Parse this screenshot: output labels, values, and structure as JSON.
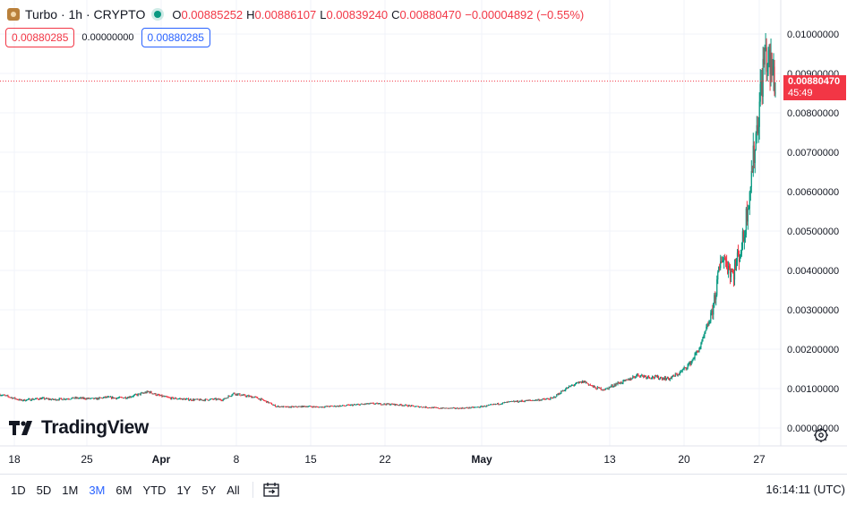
{
  "header": {
    "symbol_title": "Turbo · 1h · CRYPTO",
    "ohlc": [
      {
        "label": "O",
        "value": "0.00885252"
      },
      {
        "label": "H",
        "value": "0.00886107"
      },
      {
        "label": "L",
        "value": "0.00839240"
      },
      {
        "label": "C",
        "value": "0.00880470"
      }
    ],
    "change": "−0.00004892 (−0.55%)"
  },
  "quotes": {
    "bid": "0.00880285",
    "spread": "0.00000000",
    "ask": "0.00880285"
  },
  "last_price": {
    "value": "0.00880470",
    "countdown": "45:49"
  },
  "brand": "TradingView",
  "bottom_bar": {
    "ranges": [
      "1D",
      "5D",
      "1M",
      "3M",
      "6M",
      "YTD",
      "1Y",
      "5Y",
      "All"
    ],
    "active_range": "3M",
    "clock": "16:14:11 (UTC)"
  },
  "colors": {
    "up": "#089981",
    "down": "#f23645",
    "accent": "#2962ff",
    "grid": "#f0f3fa"
  },
  "chart_data": {
    "type": "candlestick",
    "interval": "1h",
    "y_ticks": [
      "0.01000000",
      "0.00900000",
      "0.00800000",
      "0.00700000",
      "0.00600000",
      "0.00500000",
      "0.00400000",
      "0.00300000",
      "0.00200000",
      "0.00100000",
      "0.00000000"
    ],
    "ylim": [
      0,
      0.01
    ],
    "x_ticks": [
      "18",
      "25",
      "Apr",
      "8",
      "15",
      "22",
      "May",
      "13",
      "20",
      "27"
    ],
    "last_close": 0.0088047,
    "close_path": [
      {
        "t": "18",
        "v": 0.00085
      },
      {
        "t": "19",
        "v": 0.00078
      },
      {
        "t": "20",
        "v": 0.0007
      },
      {
        "t": "21",
        "v": 0.00073
      },
      {
        "t": "22",
        "v": 0.00075
      },
      {
        "t": "23",
        "v": 0.00072
      },
      {
        "t": "24",
        "v": 0.00074
      },
      {
        "t": "25",
        "v": 0.00076
      },
      {
        "t": "26",
        "v": 0.00075
      },
      {
        "t": "27",
        "v": 0.00074
      },
      {
        "t": "28",
        "v": 0.00078
      },
      {
        "t": "29",
        "v": 0.00076
      },
      {
        "t": "30",
        "v": 0.00078
      },
      {
        "t": "31",
        "v": 0.00085
      },
      {
        "t": "Apr",
        "v": 0.00092
      },
      {
        "t": "2",
        "v": 0.00082
      },
      {
        "t": "3",
        "v": 0.00076
      },
      {
        "t": "4",
        "v": 0.00074
      },
      {
        "t": "5",
        "v": 0.00072
      },
      {
        "t": "6",
        "v": 0.00071
      },
      {
        "t": "7",
        "v": 0.00073
      },
      {
        "t": "8",
        "v": 0.00072
      },
      {
        "t": "9",
        "v": 0.00088
      },
      {
        "t": "10",
        "v": 0.00082
      },
      {
        "t": "11",
        "v": 0.00078
      },
      {
        "t": "12",
        "v": 0.00068
      },
      {
        "t": "13",
        "v": 0.00055
      },
      {
        "t": "14",
        "v": 0.00053
      },
      {
        "t": "15",
        "v": 0.00054
      },
      {
        "t": "16",
        "v": 0.00055
      },
      {
        "t": "17",
        "v": 0.00053
      },
      {
        "t": "18",
        "v": 0.00055
      },
      {
        "t": "19",
        "v": 0.00056
      },
      {
        "t": "20",
        "v": 0.00058
      },
      {
        "t": "21",
        "v": 0.0006
      },
      {
        "t": "22",
        "v": 0.00062
      },
      {
        "t": "23",
        "v": 0.00061
      },
      {
        "t": "24",
        "v": 0.0006
      },
      {
        "t": "25",
        "v": 0.00058
      },
      {
        "t": "26",
        "v": 0.00055
      },
      {
        "t": "27",
        "v": 0.00053
      },
      {
        "t": "28",
        "v": 0.00051
      },
      {
        "t": "29",
        "v": 0.0005
      },
      {
        "t": "30",
        "v": 0.0005
      },
      {
        "t": "May",
        "v": 0.00051
      },
      {
        "t": "2",
        "v": 0.00053
      },
      {
        "t": "3",
        "v": 0.00057
      },
      {
        "t": "4",
        "v": 0.00062
      },
      {
        "t": "5",
        "v": 0.00066
      },
      {
        "t": "6",
        "v": 0.00068
      },
      {
        "t": "7",
        "v": 0.0007
      },
      {
        "t": "8",
        "v": 0.00072
      },
      {
        "t": "9",
        "v": 0.00075
      },
      {
        "t": "10",
        "v": 0.00095
      },
      {
        "t": "11",
        "v": 0.0011
      },
      {
        "t": "12",
        "v": 0.00118
      },
      {
        "t": "13",
        "v": 0.00102
      },
      {
        "t": "14",
        "v": 0.00098
      },
      {
        "t": "15",
        "v": 0.00112
      },
      {
        "t": "16",
        "v": 0.0012
      },
      {
        "t": "17",
        "v": 0.00135
      },
      {
        "t": "18",
        "v": 0.0013
      },
      {
        "t": "19",
        "v": 0.00128
      },
      {
        "t": "20",
        "v": 0.00125
      },
      {
        "t": "21",
        "v": 0.0014
      },
      {
        "t": "22",
        "v": 0.00165
      },
      {
        "t": "23",
        "v": 0.0021
      },
      {
        "t": "24",
        "v": 0.0029
      },
      {
        "t": "25",
        "v": 0.0044
      },
      {
        "t": "26",
        "v": 0.0039
      },
      {
        "t": "27",
        "v": 0.0048
      },
      {
        "t": "28",
        "v": 0.007
      },
      {
        "t": "29",
        "v": 0.0095
      },
      {
        "t": "30",
        "v": 0.0088
      }
    ]
  }
}
